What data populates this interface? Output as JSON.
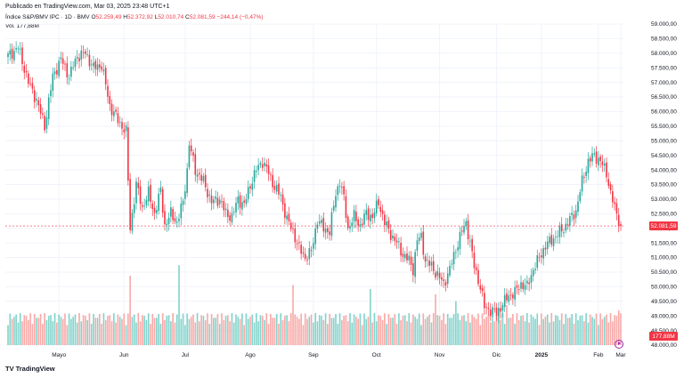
{
  "header": {
    "published": "Publicado en TradingView.com, Mar 03, 2025 23:48 UTC+1",
    "symbol": "Índice S&P/BMV IPC · 1D · BMV",
    "open_label": "O",
    "open": "52.259,49",
    "high_label": "H",
    "high": "52.372,92",
    "low_label": "L",
    "low": "52.010,74",
    "close_label": "C",
    "close": "52.081,59",
    "change": "−244,14 (−0,47%)",
    "vol_label": "Vol.",
    "vol": "177,88M"
  },
  "price_badge": "52.081,59",
  "volume_badge": "177,88M",
  "footer": {
    "brand": "TradingView"
  },
  "colors": {
    "up": "#26a69a",
    "down": "#f23645",
    "vol_up": "#83d3cb",
    "vol_down": "#f7a9a7",
    "grid": "#f0f3fa"
  },
  "chart_data": {
    "type": "candlestick",
    "title": "Índice S&P/BMV IPC · 1D · BMV",
    "y_ticks": [
      "59.000,00",
      "58.500,00",
      "58.000,00",
      "57.500,00",
      "57.000,00",
      "56.500,00",
      "56.000,00",
      "55.500,00",
      "55.000,00",
      "54.500,00",
      "54.000,00",
      "53.500,00",
      "53.000,00",
      "52.500,00",
      "52.000,00",
      "51.500,00",
      "51.000,00",
      "50.500,00",
      "50.000,00",
      "49.500,00",
      "49.000,00",
      "48.500,00",
      "48.000,00"
    ],
    "ylim": [
      48000,
      59000
    ],
    "x_ticks": [
      "Mayo",
      "Jun",
      "Jul",
      "Ago",
      "Sep",
      "Oct",
      "Nov",
      "Dic",
      "2025",
      "Feb",
      "Mar"
    ],
    "last_close": 52081.59,
    "trend_closes": [
      [
        0,
        57900
      ],
      [
        5,
        58200
      ],
      [
        10,
        57000
      ],
      [
        14,
        56400
      ],
      [
        18,
        55500
      ],
      [
        22,
        57200
      ],
      [
        26,
        57800
      ],
      [
        30,
        57200
      ],
      [
        34,
        57900
      ],
      [
        38,
        58000
      ],
      [
        42,
        57500
      ],
      [
        46,
        57600
      ],
      [
        50,
        56200
      ],
      [
        54,
        55700
      ],
      [
        58,
        55300
      ],
      [
        60,
        52000
      ],
      [
        63,
        53500
      ],
      [
        66,
        52700
      ],
      [
        69,
        53200
      ],
      [
        72,
        52500
      ],
      [
        75,
        53300
      ],
      [
        77,
        52100
      ],
      [
        80,
        52500
      ],
      [
        83,
        52200
      ],
      [
        86,
        52900
      ],
      [
        88,
        54000
      ],
      [
        89,
        54900
      ],
      [
        92,
        54000
      ],
      [
        96,
        53600
      ],
      [
        100,
        52900
      ],
      [
        104,
        53000
      ],
      [
        107,
        52500
      ],
      [
        110,
        52400
      ],
      [
        113,
        53000
      ],
      [
        116,
        52800
      ],
      [
        119,
        53500
      ],
      [
        122,
        54000
      ],
      [
        125,
        54300
      ],
      [
        128,
        53900
      ],
      [
        131,
        53400
      ],
      [
        134,
        53100
      ],
      [
        137,
        52300
      ],
      [
        140,
        51900
      ],
      [
        143,
        51300
      ],
      [
        146,
        51000
      ],
      [
        149,
        51200
      ],
      [
        152,
        52300
      ],
      [
        155,
        52000
      ],
      [
        158,
        51900
      ],
      [
        161,
        53200
      ],
      [
        163,
        53600
      ],
      [
        165,
        53000
      ],
      [
        167,
        52000
      ],
      [
        170,
        52400
      ],
      [
        173,
        52100
      ],
      [
        176,
        52500
      ],
      [
        179,
        52400
      ],
      [
        182,
        52900
      ],
      [
        185,
        52200
      ],
      [
        188,
        51800
      ],
      [
        191,
        51500
      ],
      [
        194,
        51100
      ],
      [
        197,
        50900
      ],
      [
        199,
        50600
      ],
      [
        201,
        51600
      ],
      [
        203,
        51700
      ],
      [
        205,
        50900
      ],
      [
        208,
        50700
      ],
      [
        211,
        50400
      ],
      [
        214,
        50100
      ],
      [
        217,
        50600
      ],
      [
        220,
        51300
      ],
      [
        223,
        51900
      ],
      [
        225,
        52200
      ],
      [
        227,
        51500
      ],
      [
        229,
        50700
      ],
      [
        232,
        50000
      ],
      [
        234,
        49300
      ],
      [
        237,
        49200
      ],
      [
        240,
        49100
      ],
      [
        243,
        49400
      ],
      [
        246,
        49700
      ],
      [
        249,
        49800
      ],
      [
        252,
        50100
      ],
      [
        255,
        50000
      ],
      [
        258,
        50600
      ],
      [
        261,
        51000
      ],
      [
        264,
        51400
      ],
      [
        267,
        51600
      ],
      [
        270,
        51800
      ],
      [
        273,
        52000
      ],
      [
        276,
        52300
      ],
      [
        279,
        52600
      ],
      [
        282,
        53600
      ],
      [
        285,
        54300
      ],
      [
        288,
        54500
      ],
      [
        291,
        54300
      ],
      [
        294,
        53900
      ],
      [
        296,
        53200
      ],
      [
        298,
        52700
      ],
      [
        300,
        52300
      ],
      [
        301,
        52082
      ]
    ],
    "volumes_m": {
      "typical": 150,
      "spikes": [
        [
          60,
          520
        ],
        [
          84,
          600
        ],
        [
          140,
          450
        ],
        [
          178,
          420
        ],
        [
          210,
          380
        ],
        [
          220,
          330
        ],
        [
          245,
          300
        ],
        [
          300,
          260
        ]
      ]
    }
  }
}
